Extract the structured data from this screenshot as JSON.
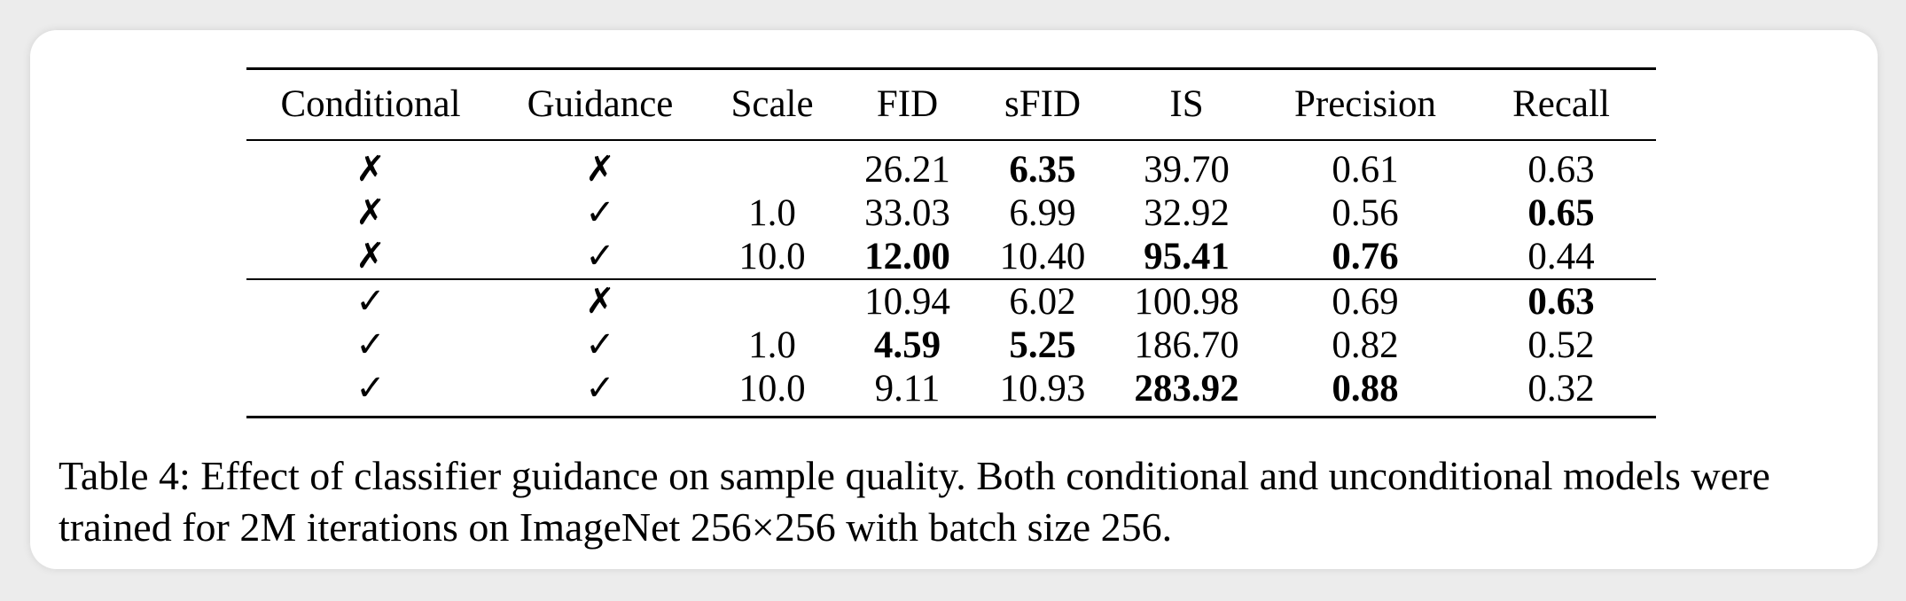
{
  "table": {
    "headers": [
      "Conditional",
      "Guidance",
      "Scale",
      "FID",
      "sFID",
      "IS",
      "Precision",
      "Recall"
    ],
    "groups": [
      {
        "rows": [
          {
            "conditional": "✗",
            "guidance": "✗",
            "scale": "",
            "fid": "26.21",
            "sfid": "6.35",
            "is": "39.70",
            "precision": "0.61",
            "recall": "0.63",
            "bold": [
              "sfid"
            ]
          },
          {
            "conditional": "✗",
            "guidance": "✓",
            "scale": "1.0",
            "fid": "33.03",
            "sfid": "6.99",
            "is": "32.92",
            "precision": "0.56",
            "recall": "0.65",
            "bold": [
              "recall"
            ]
          },
          {
            "conditional": "✗",
            "guidance": "✓",
            "scale": "10.0",
            "fid": "12.00",
            "sfid": "10.40",
            "is": "95.41",
            "precision": "0.76",
            "recall": "0.44",
            "bold": [
              "fid",
              "is",
              "precision"
            ]
          }
        ]
      },
      {
        "rows": [
          {
            "conditional": "✓",
            "guidance": "✗",
            "scale": "",
            "fid": "10.94",
            "sfid": "6.02",
            "is": "100.98",
            "precision": "0.69",
            "recall": "0.63",
            "bold": [
              "recall"
            ]
          },
          {
            "conditional": "✓",
            "guidance": "✓",
            "scale": "1.0",
            "fid": "4.59",
            "sfid": "5.25",
            "is": "186.70",
            "precision": "0.82",
            "recall": "0.52",
            "bold": [
              "fid",
              "sfid"
            ]
          },
          {
            "conditional": "✓",
            "guidance": "✓",
            "scale": "10.0",
            "fid": "9.11",
            "sfid": "10.93",
            "is": "283.92",
            "precision": "0.88",
            "recall": "0.32",
            "bold": [
              "is",
              "precision"
            ]
          }
        ]
      }
    ]
  },
  "caption": "Table 4: Effect of classifier guidance on sample quality. Both conditional and unconditional models were trained for 2M iterations on ImageNet 256×256 with batch size 256."
}
